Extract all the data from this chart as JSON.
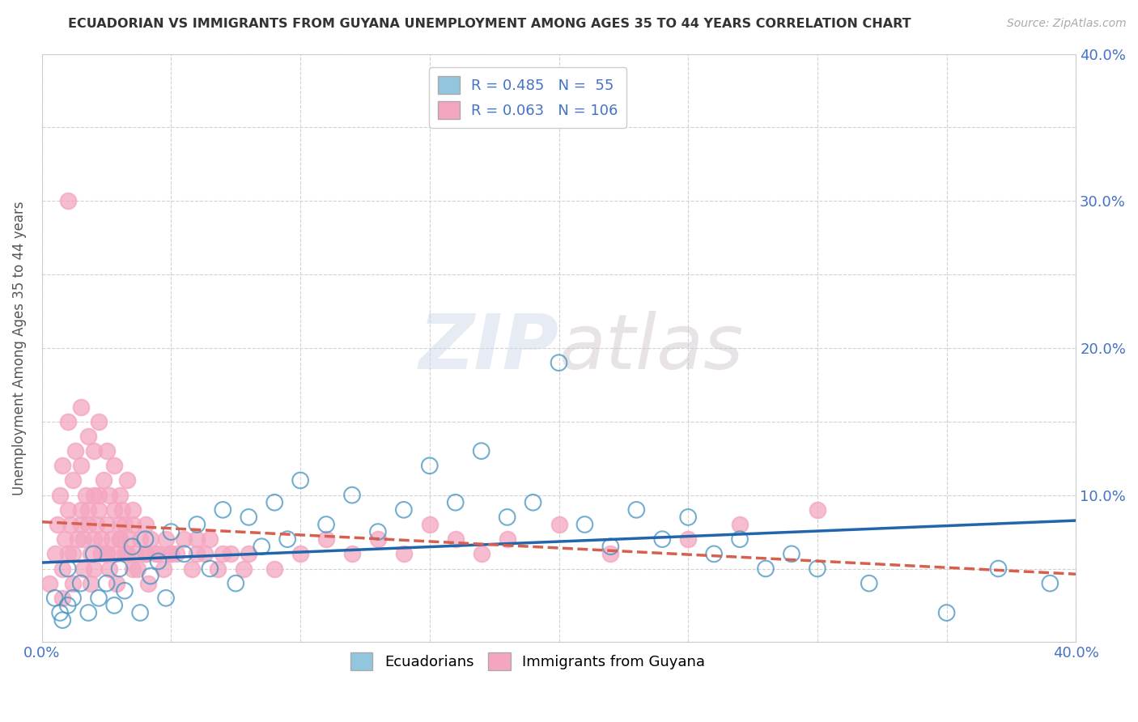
{
  "title": "ECUADORIAN VS IMMIGRANTS FROM GUYANA UNEMPLOYMENT AMONG AGES 35 TO 44 YEARS CORRELATION CHART",
  "source": "Source: ZipAtlas.com",
  "ylabel": "Unemployment Among Ages 35 to 44 years",
  "xlim": [
    0.0,
    0.4
  ],
  "ylim": [
    0.0,
    0.4
  ],
  "ecuadorians_color": "#92c5de",
  "ecuadorians_edge_color": "#4393c3",
  "immigrants_color": "#f4a6c0",
  "immigrants_edge_color": "#d6604d",
  "ecuadorians_line_color": "#2166ac",
  "immigrants_line_color": "#d6604d",
  "R_ecu": 0.485,
  "N_ecu": 55,
  "R_imm": 0.063,
  "N_imm": 106,
  "legend_label_ecu": "Ecuadorians",
  "legend_label_imm": "Immigrants from Guyana",
  "watermark_zip": "ZIP",
  "watermark_atlas": "atlas",
  "background_color": "#ffffff",
  "grid_color": "#cccccc",
  "tick_color": "#4472c4",
  "title_color": "#333333",
  "source_color": "#aaaaaa",
  "ylabel_color": "#555555",
  "ecu_x": [
    0.005,
    0.007,
    0.008,
    0.01,
    0.01,
    0.012,
    0.015,
    0.018,
    0.02,
    0.022,
    0.025,
    0.028,
    0.03,
    0.032,
    0.035,
    0.038,
    0.04,
    0.042,
    0.045,
    0.048,
    0.05,
    0.055,
    0.06,
    0.065,
    0.07,
    0.075,
    0.08,
    0.085,
    0.09,
    0.095,
    0.1,
    0.11,
    0.12,
    0.13,
    0.14,
    0.15,
    0.16,
    0.17,
    0.18,
    0.19,
    0.2,
    0.21,
    0.22,
    0.23,
    0.24,
    0.25,
    0.26,
    0.27,
    0.28,
    0.29,
    0.3,
    0.32,
    0.35,
    0.37,
    0.39
  ],
  "ecu_y": [
    0.03,
    0.02,
    0.015,
    0.025,
    0.05,
    0.03,
    0.04,
    0.02,
    0.06,
    0.03,
    0.04,
    0.025,
    0.05,
    0.035,
    0.065,
    0.02,
    0.07,
    0.045,
    0.055,
    0.03,
    0.075,
    0.06,
    0.08,
    0.05,
    0.09,
    0.04,
    0.085,
    0.065,
    0.095,
    0.07,
    0.11,
    0.08,
    0.1,
    0.075,
    0.09,
    0.12,
    0.095,
    0.13,
    0.085,
    0.095,
    0.19,
    0.08,
    0.065,
    0.09,
    0.07,
    0.085,
    0.06,
    0.07,
    0.05,
    0.06,
    0.05,
    0.04,
    0.02,
    0.05,
    0.04
  ],
  "imm_x": [
    0.003,
    0.005,
    0.006,
    0.007,
    0.008,
    0.008,
    0.009,
    0.01,
    0.01,
    0.01,
    0.011,
    0.012,
    0.012,
    0.013,
    0.014,
    0.015,
    0.015,
    0.015,
    0.016,
    0.017,
    0.018,
    0.018,
    0.019,
    0.02,
    0.02,
    0.02,
    0.021,
    0.022,
    0.022,
    0.023,
    0.024,
    0.025,
    0.025,
    0.025,
    0.026,
    0.027,
    0.028,
    0.028,
    0.029,
    0.03,
    0.03,
    0.03,
    0.031,
    0.032,
    0.032,
    0.033,
    0.034,
    0.035,
    0.035,
    0.036,
    0.038,
    0.04,
    0.04,
    0.042,
    0.045,
    0.048,
    0.05,
    0.055,
    0.06,
    0.065,
    0.07,
    0.08,
    0.09,
    0.1,
    0.11,
    0.12,
    0.13,
    0.14,
    0.15,
    0.16,
    0.17,
    0.18,
    0.02,
    0.025,
    0.03,
    0.015,
    0.018,
    0.022,
    0.035,
    0.04,
    0.05,
    0.06,
    0.2,
    0.22,
    0.25,
    0.27,
    0.3,
    0.01,
    0.012,
    0.008,
    0.016,
    0.019,
    0.023,
    0.026,
    0.029,
    0.033,
    0.037,
    0.041,
    0.044,
    0.047,
    0.052,
    0.058,
    0.063,
    0.068,
    0.073,
    0.078
  ],
  "imm_y": [
    0.04,
    0.06,
    0.08,
    0.1,
    0.05,
    0.12,
    0.07,
    0.06,
    0.09,
    0.15,
    0.08,
    0.11,
    0.06,
    0.13,
    0.07,
    0.09,
    0.12,
    0.16,
    0.07,
    0.1,
    0.08,
    0.14,
    0.06,
    0.07,
    0.1,
    0.13,
    0.08,
    0.09,
    0.15,
    0.07,
    0.11,
    0.06,
    0.13,
    0.08,
    0.1,
    0.07,
    0.09,
    0.12,
    0.06,
    0.08,
    0.1,
    0.07,
    0.09,
    0.06,
    0.08,
    0.11,
    0.07,
    0.08,
    0.09,
    0.06,
    0.07,
    0.06,
    0.08,
    0.07,
    0.06,
    0.07,
    0.06,
    0.07,
    0.06,
    0.07,
    0.06,
    0.06,
    0.05,
    0.06,
    0.07,
    0.06,
    0.07,
    0.06,
    0.08,
    0.07,
    0.06,
    0.07,
    0.05,
    0.06,
    0.07,
    0.08,
    0.09,
    0.1,
    0.05,
    0.06,
    0.06,
    0.07,
    0.08,
    0.06,
    0.07,
    0.08,
    0.09,
    0.3,
    0.04,
    0.03,
    0.05,
    0.04,
    0.06,
    0.05,
    0.04,
    0.06,
    0.05,
    0.04,
    0.06,
    0.05,
    0.06,
    0.05,
    0.06,
    0.05,
    0.06,
    0.05
  ]
}
